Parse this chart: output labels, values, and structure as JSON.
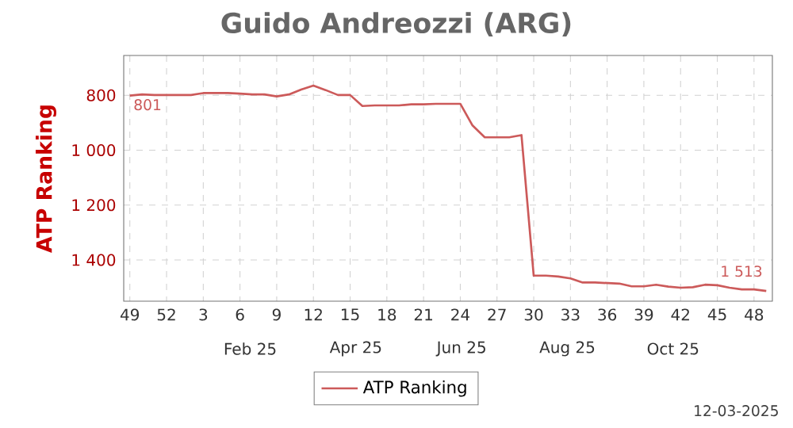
{
  "chart_data": {
    "type": "line",
    "title": "Guido Andreozzi (ARG)",
    "ylabel": "ATP Ranking",
    "categories": [
      "49",
      null,
      null,
      "52",
      null,
      null,
      "3",
      null,
      null,
      "6",
      null,
      null,
      "9",
      null,
      null,
      "12",
      null,
      null,
      "15",
      null,
      null,
      "18",
      null,
      null,
      "21",
      null,
      null,
      "24",
      null,
      null,
      "27",
      null,
      null,
      "30",
      null,
      null,
      "33",
      null,
      null,
      "36",
      null,
      null,
      "39",
      null,
      null,
      "42",
      null,
      null,
      "45",
      null,
      null,
      "48",
      null
    ],
    "series": [
      {
        "name": "ATP Ranking",
        "color": "#cc5a5a",
        "values": [
          801,
          797,
          799,
          799,
          799,
          799,
          792,
          792,
          792,
          794,
          797,
          797,
          804,
          797,
          779,
          765,
          781,
          799,
          799,
          839,
          837,
          837,
          837,
          833,
          833,
          831,
          831,
          831,
          910,
          953,
          953,
          953,
          945,
          1457,
          1457,
          1460,
          1467,
          1482,
          1482,
          1484,
          1486,
          1496,
          1496,
          1490,
          1497,
          1501,
          1499,
          1490,
          1492,
          1501,
          1507,
          1507,
          1513
        ],
        "value_labels": [
          "801",
          null,
          null,
          null,
          null,
          null,
          null,
          null,
          null,
          null,
          null,
          null,
          null,
          null,
          null,
          null,
          null,
          null,
          null,
          null,
          null,
          null,
          null,
          null,
          null,
          null,
          null,
          null,
          null,
          null,
          null,
          null,
          null,
          null,
          null,
          null,
          null,
          null,
          null,
          null,
          null,
          null,
          null,
          null,
          null,
          null,
          null,
          null,
          null,
          null,
          null,
          null,
          "1 513"
        ]
      }
    ],
    "ylim": [
      1550,
      655
    ],
    "yticks": [
      800,
      {
        "value": 1000,
        "label": "1 000"
      },
      {
        "value": 1200,
        "label": "1 200"
      },
      {
        "value": 1400,
        "label": "1 400"
      }
    ],
    "grid": true,
    "legend": "bottom",
    "marker": "none",
    "line_style": "solid",
    "annotations": [
      "Feb 25",
      "Apr 25",
      "Jun 25",
      "Aug 25",
      "Oct 25",
      "12-03-2025"
    ]
  }
}
